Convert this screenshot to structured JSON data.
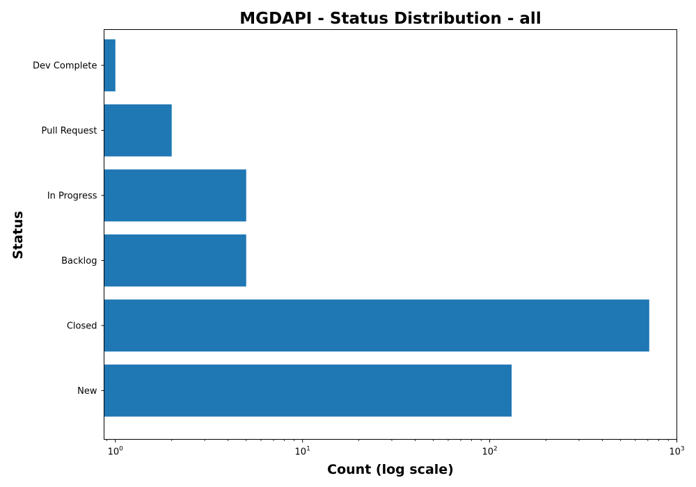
{
  "chart_data": {
    "type": "bar",
    "orientation": "horizontal",
    "title": "MGDAPI - Status Distribution - all",
    "xlabel": "Count (log scale)",
    "ylabel": "Status",
    "xscale": "log",
    "xlim": [
      0.87,
      1000
    ],
    "categories": [
      "New",
      "Closed",
      "Backlog",
      "In Progress",
      "Pull Request",
      "Dev Complete"
    ],
    "values": [
      131,
      712,
      5,
      5,
      2,
      1
    ],
    "xticks": [
      {
        "base": "10",
        "exp": "0",
        "value": 1
      },
      {
        "base": "10",
        "exp": "1",
        "value": 10
      },
      {
        "base": "10",
        "exp": "2",
        "value": 100
      },
      {
        "base": "10",
        "exp": "3",
        "value": 1000
      }
    ],
    "grid": false,
    "legend": "none",
    "colors": {
      "bar": "#1f77b4",
      "axis": "#000000",
      "background": "#ffffff"
    }
  }
}
